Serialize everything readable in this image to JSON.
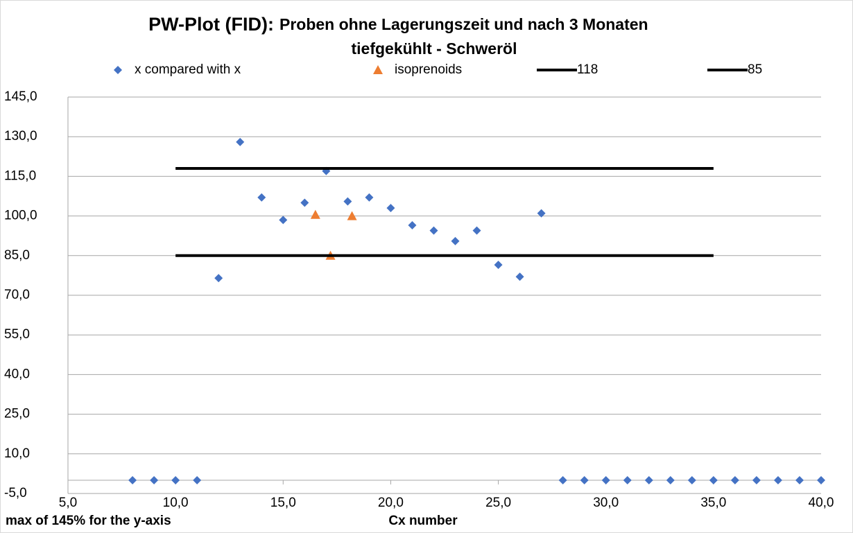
{
  "chart_data": {
    "type": "scatter",
    "title": "PW-Plot (FID):",
    "subtitle": [
      "Proben ohne Lagerungszeit und nach 3 Monaten",
      "tiefgekühlt - Schweröl"
    ],
    "xlabel": "Cx number",
    "note": "max of 145% for the y-axis",
    "xlim": [
      5,
      40
    ],
    "ylim": [
      -5,
      145
    ],
    "xaxis_at": 0,
    "grid": true,
    "legend": "top",
    "xticks": [
      {
        "value": 5,
        "label": "5,0"
      },
      {
        "value": 10,
        "label": "10,0"
      },
      {
        "value": 15,
        "label": "15,0"
      },
      {
        "value": 20,
        "label": "20,0"
      },
      {
        "value": 25,
        "label": "25,0"
      },
      {
        "value": 30,
        "label": "30,0"
      },
      {
        "value": 35,
        "label": "35,0"
      },
      {
        "value": 40,
        "label": "40,0"
      }
    ],
    "yticks": [
      {
        "value": -5,
        "label": "-5,0"
      },
      {
        "value": 10,
        "label": "10,0"
      },
      {
        "value": 25,
        "label": "25,0"
      },
      {
        "value": 40,
        "label": "40,0"
      },
      {
        "value": 55,
        "label": "55,0"
      },
      {
        "value": 70,
        "label": "70,0"
      },
      {
        "value": 85,
        "label": "85,0"
      },
      {
        "value": 100,
        "label": "100,0"
      },
      {
        "value": 115,
        "label": "115,0"
      },
      {
        "value": 130,
        "label": "130,0"
      },
      {
        "value": 145,
        "label": "145,0"
      }
    ],
    "series": [
      {
        "name": "x  compared with x",
        "color": "#4472c4",
        "marker": "diamond",
        "x": [
          8,
          9,
          10,
          11,
          12,
          13,
          14,
          15,
          16,
          17,
          18,
          19,
          20,
          21,
          22,
          23,
          24,
          25,
          26,
          27,
          28,
          29,
          30,
          31,
          32,
          33,
          34,
          35,
          36,
          37,
          38,
          39,
          40
        ],
        "values": [
          0,
          0,
          0,
          0,
          76.5,
          128,
          107,
          98.5,
          105,
          117,
          105.5,
          107,
          103,
          96.5,
          94.5,
          90.5,
          94.5,
          81.5,
          77,
          101,
          0,
          0,
          0,
          0,
          0,
          0,
          0,
          0,
          0,
          0,
          0,
          0,
          0
        ]
      },
      {
        "name": "isoprenoids",
        "color": "#ed7d31",
        "marker": "triangle",
        "x": [
          16.5,
          17.2,
          18.2
        ],
        "values": [
          100.5,
          85,
          100
        ]
      },
      {
        "name": "118",
        "color": "#000000",
        "marker": "line",
        "x": [
          10,
          35
        ],
        "values": [
          118,
          118
        ]
      },
      {
        "name": "85",
        "color": "#000000",
        "marker": "line",
        "x": [
          10,
          35
        ],
        "values": [
          85,
          85
        ]
      }
    ]
  }
}
